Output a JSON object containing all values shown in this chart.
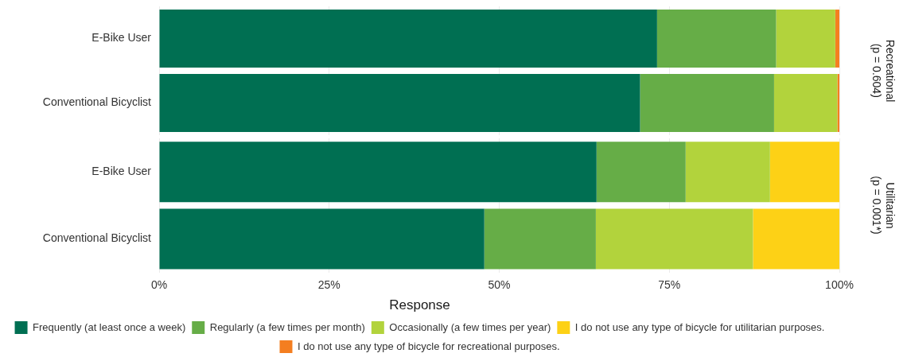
{
  "chart_data": [
    {
      "type": "bar",
      "orientation": "horizontal",
      "stacked": true,
      "annotations": [
        "Recreational\n(p = 0.604)"
      ],
      "categories": [
        "E-Bike User",
        "Conventional Bicyclist"
      ],
      "xlim": [
        0,
        100
      ],
      "xticks": [
        {
          "value": 0,
          "label": null
        },
        {
          "value": 25,
          "label": null
        },
        {
          "value": 50,
          "label": null
        },
        {
          "value": 75,
          "label": null
        },
        {
          "value": 100,
          "label": null
        }
      ],
      "grid": "x",
      "legend": false,
      "tick_labels": "y",
      "series": [
        {
          "color": "#006f52",
          "values": [
            73.2,
            70.7
          ]
        },
        {
          "color": "#66ad47",
          "values": [
            17.5,
            19.7
          ]
        },
        {
          "color": "#b2d33c",
          "values": [
            8.7,
            9.3
          ]
        },
        {
          "color": "#f47e20",
          "values": [
            0.6,
            0.3
          ]
        }
      ]
    },
    {
      "type": "bar",
      "orientation": "horizontal",
      "stacked": true,
      "annotations": [
        "Utilitarian\n(p = 0.001*)"
      ],
      "legend_title": "Response",
      "categories": [
        "E-Bike User",
        "Conventional Bicyclist"
      ],
      "xlim": [
        0,
        100
      ],
      "xticks": [
        {
          "value": 0,
          "label": "0%"
        },
        {
          "value": 25,
          "label": "25%"
        },
        {
          "value": 50,
          "label": "50%"
        },
        {
          "value": 75,
          "label": "75%"
        },
        {
          "value": 100,
          "label": "100%"
        }
      ],
      "grid": "x",
      "legend": "bottom",
      "series": [
        {
          "name": "Frequently (at least once a week)",
          "color": "#006f52",
          "values": [
            64.3,
            47.8
          ]
        },
        {
          "name": "Regularly (a few times per month)",
          "color": "#66ad47",
          "values": [
            13.1,
            16.4
          ]
        },
        {
          "name": "Occasionally (a few times per year)",
          "color": "#b2d33c",
          "values": [
            12.4,
            23.1
          ]
        },
        {
          "name": "I do not use any type of bicycle for utilitarian purposes.",
          "color": "#fdd116",
          "values": [
            10.2,
            12.7
          ]
        },
        {
          "name": "I do not use any type of bicycle for recreational purposes.",
          "color": "#f47e20",
          "values": [
            null,
            null
          ]
        }
      ]
    }
  ]
}
